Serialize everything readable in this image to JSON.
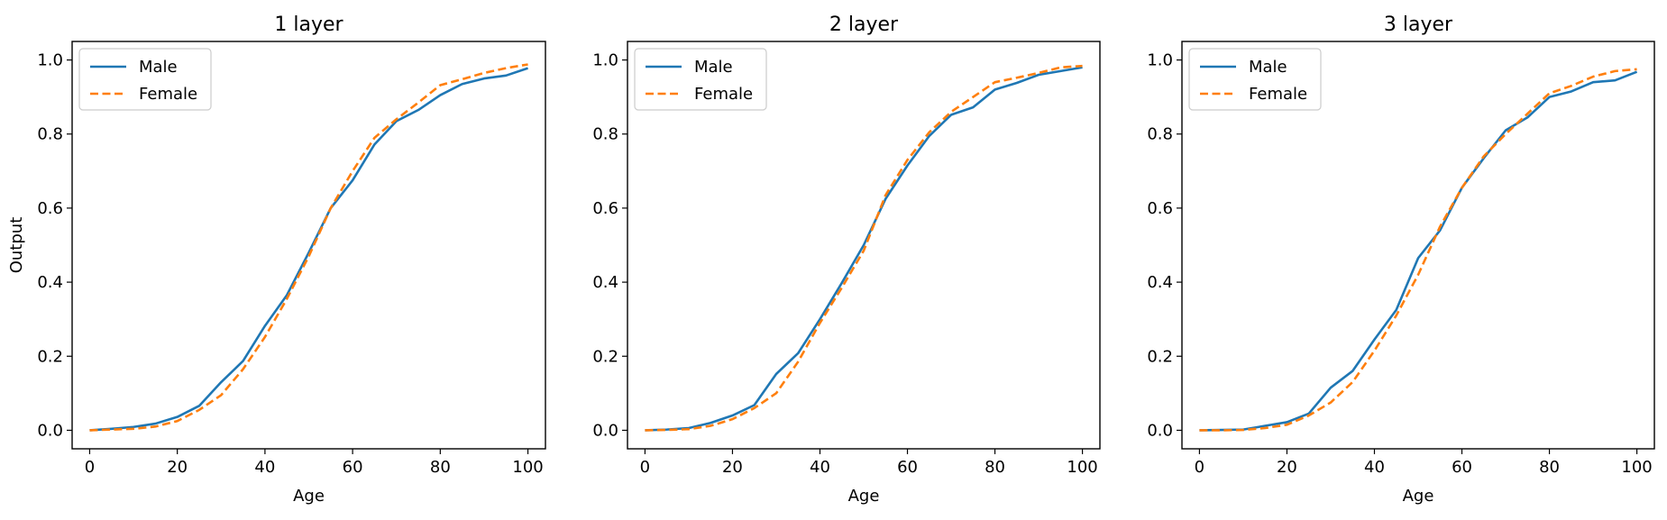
{
  "colors": {
    "male": "#1f77b4",
    "female": "#ff7f0e"
  },
  "chart_data": [
    {
      "type": "line",
      "title": "1 layer",
      "xlabel": "Age",
      "ylabel": "Output",
      "xlim": [
        -4,
        104
      ],
      "ylim": [
        -0.05,
        1.05
      ],
      "xticks": [
        "0",
        "20",
        "40",
        "60",
        "80",
        "100"
      ],
      "yticks": [
        "0.0",
        "0.2",
        "0.4",
        "0.6",
        "0.8",
        "1.0"
      ],
      "legend": "top-left",
      "x": [
        0,
        5,
        10,
        15,
        20,
        25,
        30,
        35,
        40,
        45,
        50,
        55,
        60,
        65,
        70,
        75,
        80,
        85,
        90,
        95,
        100
      ],
      "series": [
        {
          "name": "Male",
          "style": "solid",
          "values": [
            0.0,
            0.004,
            0.009,
            0.018,
            0.036,
            0.066,
            0.13,
            0.187,
            0.282,
            0.365,
            0.48,
            0.6,
            0.675,
            0.772,
            0.835,
            0.865,
            0.905,
            0.935,
            0.95,
            0.958,
            0.978
          ]
        },
        {
          "name": "Female",
          "style": "dashed",
          "values": [
            0.0,
            0.002,
            0.004,
            0.01,
            0.025,
            0.055,
            0.095,
            0.165,
            0.252,
            0.355,
            0.47,
            0.6,
            0.7,
            0.79,
            0.84,
            0.885,
            0.932,
            0.948,
            0.965,
            0.978,
            0.988
          ]
        }
      ]
    },
    {
      "type": "line",
      "title": "2 layer",
      "xlabel": "Age",
      "ylabel": "",
      "xlim": [
        -4,
        104
      ],
      "ylim": [
        -0.05,
        1.05
      ],
      "xticks": [
        "0",
        "20",
        "40",
        "60",
        "80",
        "100"
      ],
      "yticks": [
        "0.0",
        "0.2",
        "0.4",
        "0.6",
        "0.8",
        "1.0"
      ],
      "legend": "top-left",
      "x": [
        0,
        5,
        10,
        15,
        20,
        25,
        30,
        35,
        40,
        45,
        50,
        55,
        60,
        65,
        70,
        75,
        80,
        85,
        90,
        95,
        100
      ],
      "series": [
        {
          "name": "Male",
          "style": "solid",
          "values": [
            0.0,
            0.002,
            0.006,
            0.02,
            0.04,
            0.068,
            0.152,
            0.208,
            0.3,
            0.398,
            0.5,
            0.625,
            0.715,
            0.795,
            0.852,
            0.872,
            0.92,
            0.938,
            0.96,
            0.97,
            0.98
          ]
        },
        {
          "name": "Female",
          "style": "dashed",
          "values": [
            0.0,
            0.001,
            0.003,
            0.012,
            0.03,
            0.06,
            0.1,
            0.185,
            0.29,
            0.385,
            0.485,
            0.635,
            0.73,
            0.805,
            0.86,
            0.9,
            0.94,
            0.952,
            0.965,
            0.98,
            0.984
          ]
        }
      ]
    },
    {
      "type": "line",
      "title": "3 layer",
      "xlabel": "Age",
      "ylabel": "",
      "xlim": [
        -4,
        104
      ],
      "ylim": [
        -0.05,
        1.05
      ],
      "xticks": [
        "0",
        "20",
        "40",
        "60",
        "80",
        "100"
      ],
      "yticks": [
        "0.0",
        "0.2",
        "0.4",
        "0.6",
        "0.8",
        "1.0"
      ],
      "legend": "top-left",
      "x": [
        0,
        5,
        10,
        15,
        20,
        25,
        30,
        35,
        40,
        45,
        50,
        55,
        60,
        65,
        70,
        75,
        80,
        85,
        90,
        95,
        100
      ],
      "series": [
        {
          "name": "Male",
          "style": "solid",
          "values": [
            0.0,
            0.001,
            0.002,
            0.012,
            0.022,
            0.045,
            0.115,
            0.16,
            0.245,
            0.325,
            0.465,
            0.54,
            0.655,
            0.735,
            0.81,
            0.845,
            0.9,
            0.915,
            0.94,
            0.945,
            0.968
          ]
        },
        {
          "name": "Female",
          "style": "dashed",
          "values": [
            0.0,
            0.0,
            0.001,
            0.006,
            0.015,
            0.04,
            0.075,
            0.13,
            0.215,
            0.31,
            0.42,
            0.55,
            0.655,
            0.74,
            0.8,
            0.855,
            0.91,
            0.93,
            0.955,
            0.97,
            0.975
          ]
        }
      ]
    }
  ]
}
